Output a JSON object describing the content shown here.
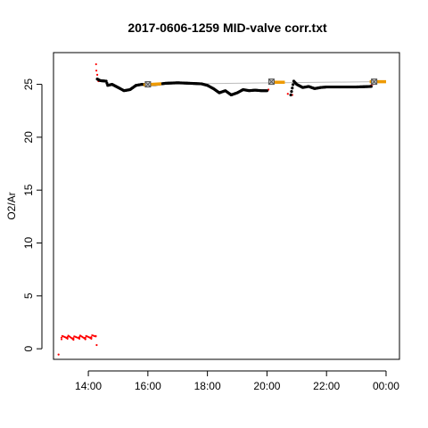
{
  "chart_data": {
    "type": "scatter",
    "title": "2017-0606-1259 MID-valve corr.txt",
    "xlabel": "",
    "ylabel": "O2/Ar",
    "xlim": [
      12.83,
      24.45
    ],
    "ylim": [
      -1.0,
      28.0
    ],
    "x_ticks": [
      14,
      16,
      18,
      20,
      22,
      24
    ],
    "x_tick_labels": [
      "14:00",
      "16:00",
      "18:00",
      "20:00",
      "22:00",
      "00:00"
    ],
    "y_ticks": [
      0,
      5,
      10,
      15,
      20,
      25
    ],
    "y_tick_labels": [
      "0",
      "5",
      "10",
      "15",
      "20",
      "25"
    ],
    "colors": {
      "raw": "#ff0000",
      "corrected": "#000000",
      "standard": "#ee9a00",
      "fit_line": "#bbbbbb",
      "marker": "#555555"
    },
    "series": [
      {
        "role": "raw",
        "points": [
          [
            13.0,
            -0.55
          ],
          [
            13.1,
            1.05
          ],
          [
            13.3,
            1.1
          ],
          [
            13.5,
            1.0
          ],
          [
            13.7,
            1.1
          ],
          [
            13.9,
            1.05
          ],
          [
            14.1,
            1.1
          ],
          [
            14.25,
            1.2
          ],
          [
            14.28,
            0.35
          ],
          [
            14.26,
            26.9
          ],
          [
            14.27,
            26.3
          ],
          [
            14.3,
            25.9
          ],
          [
            14.32,
            25.5
          ],
          [
            14.34,
            25.3
          ],
          [
            15.9,
            25.0
          ],
          [
            16.0,
            24.95
          ],
          [
            20.0,
            24.4
          ],
          [
            20.05,
            24.5
          ],
          [
            20.1,
            25.2
          ],
          [
            20.15,
            25.3
          ],
          [
            20.7,
            24.1
          ],
          [
            20.8,
            23.95
          ],
          [
            20.85,
            24.0
          ],
          [
            23.5,
            24.9
          ],
          [
            23.55,
            25.0
          ]
        ]
      },
      {
        "role": "corrected",
        "points": [
          [
            14.3,
            25.5
          ],
          [
            14.4,
            25.35
          ],
          [
            14.6,
            25.3
          ],
          [
            14.65,
            24.9
          ],
          [
            14.8,
            25.0
          ],
          [
            15.0,
            24.7
          ],
          [
            15.2,
            24.4
          ],
          [
            15.4,
            24.5
          ],
          [
            15.6,
            24.9
          ],
          [
            15.8,
            25.0
          ],
          [
            16.0,
            24.95
          ],
          [
            16.3,
            25.0
          ],
          [
            16.6,
            25.1
          ],
          [
            17.0,
            25.15
          ],
          [
            17.4,
            25.1
          ],
          [
            17.8,
            25.05
          ],
          [
            18.0,
            24.9
          ],
          [
            18.2,
            24.6
          ],
          [
            18.4,
            24.2
          ],
          [
            18.6,
            24.4
          ],
          [
            18.8,
            24.0
          ],
          [
            19.0,
            24.2
          ],
          [
            19.2,
            24.5
          ],
          [
            19.4,
            24.4
          ],
          [
            19.6,
            24.45
          ],
          [
            19.8,
            24.4
          ],
          [
            20.0,
            24.4
          ],
          [
            20.8,
            24.0
          ],
          [
            20.9,
            25.3
          ],
          [
            21.0,
            25.0
          ],
          [
            21.2,
            24.7
          ],
          [
            21.4,
            24.8
          ],
          [
            21.6,
            24.6
          ],
          [
            21.8,
            24.7
          ],
          [
            22.0,
            24.75
          ],
          [
            22.5,
            24.75
          ],
          [
            23.0,
            24.75
          ],
          [
            23.5,
            24.8
          ]
        ]
      },
      {
        "role": "standard",
        "segments": [
          [
            [
              15.85,
              24.95
            ],
            [
              16.45,
              25.05
            ]
          ],
          [
            [
              20.05,
              25.2
            ],
            [
              20.6,
              25.2
            ]
          ],
          [
            [
              23.45,
              25.25
            ],
            [
              24.0,
              25.25
            ]
          ]
        ]
      },
      {
        "role": "reference_markers",
        "points": [
          [
            16.0,
            25.0
          ],
          [
            20.15,
            25.25
          ],
          [
            23.6,
            25.25
          ]
        ]
      },
      {
        "role": "fit_line",
        "points": [
          [
            16.0,
            25.0
          ],
          [
            23.6,
            25.25
          ]
        ]
      }
    ]
  }
}
